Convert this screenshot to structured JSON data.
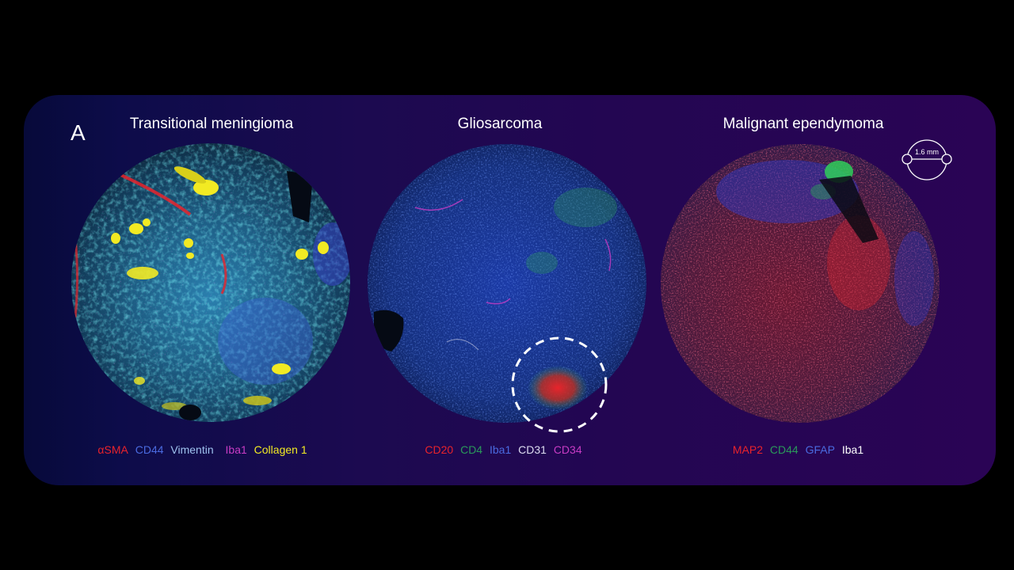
{
  "figure": {
    "panel_label": "A",
    "scale_bar": {
      "label": "1.6 mm"
    },
    "samples": [
      {
        "title": "Transitional meningioma",
        "markers": [
          {
            "label": "αSMA",
            "color": "#e8232b"
          },
          {
            "label": "CD44",
            "color": "#4a6be0"
          },
          {
            "label": "Vimentin",
            "color": "#9ec2ee"
          },
          {
            "label": "Iba1",
            "color": "#c83cc4"
          },
          {
            "label": "Collagen 1",
            "color": "#f2ea23"
          }
        ]
      },
      {
        "title": "Gliosarcoma",
        "markers": [
          {
            "label": "CD20",
            "color": "#e8232b"
          },
          {
            "label": "CD4",
            "color": "#2a9a5a"
          },
          {
            "label": "Iba1",
            "color": "#4a6be0"
          },
          {
            "label": "CD31",
            "color": "#dcdcf0"
          },
          {
            "label": "CD34",
            "color": "#c83cc4"
          }
        ]
      },
      {
        "title": "Malignant ependymoma",
        "markers": [
          {
            "label": "MAP2",
            "color": "#e8232b"
          },
          {
            "label": "CD44",
            "color": "#2a9a5a"
          },
          {
            "label": "GFAP",
            "color": "#4a6be0"
          },
          {
            "label": "Iba1",
            "color": "#ffffff"
          }
        ]
      }
    ]
  }
}
